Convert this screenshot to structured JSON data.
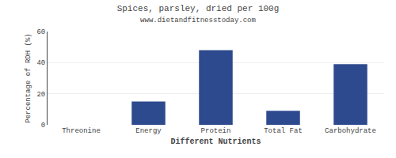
{
  "chart_data": {
    "type": "bar",
    "title": "Spices, parsley, dried per 100g",
    "subtitle": "www.dietandfitnesstoday.com",
    "xlabel": "Different Nutrients",
    "ylabel": "Percentage of RDH (%)",
    "categories": [
      "Threonine",
      "Energy",
      "Protein",
      "Total Fat",
      "Carbohydrate"
    ],
    "values": [
      0,
      15,
      48,
      9,
      39
    ],
    "color": "#2e4a8e",
    "ylim": [
      0,
      60
    ],
    "yticks": [
      0,
      20,
      40,
      60
    ],
    "grid": true
  }
}
